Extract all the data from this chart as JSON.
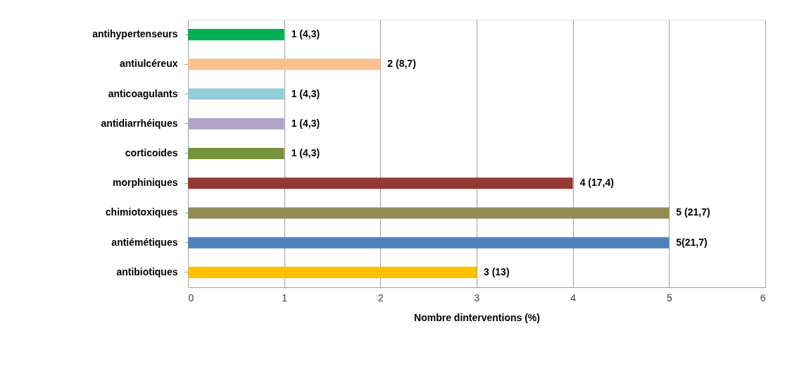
{
  "chart_data": {
    "type": "bar",
    "orientation": "horizontal",
    "xlabel": "Nombre dinterventions (%)",
    "categories": [
      "antihypertenseurs",
      "antiulcéreux",
      "anticoagulants",
      "antidiarrhéiques",
      "corticoides",
      "morphiniques",
      "chimiotoxiques",
      "antiémétiques",
      "antibiotiques"
    ],
    "values": [
      1,
      2,
      1,
      1,
      1,
      4,
      5,
      5,
      3
    ],
    "colors": [
      "#00b050",
      "#fac090",
      "#92cddc",
      "#b3a2c7",
      "#77933c",
      "#953735",
      "#948a54",
      "#4f81bd",
      "#ffc000"
    ],
    "value_labels": [
      "1 (4,3)",
      "2 (8,7)",
      "1 (4,3)",
      "1 (4,3)",
      "1 (4,3)",
      "4 (17,4)",
      "5 (21,7)",
      "5(21,7)",
      "3 (13)"
    ],
    "xlim": [
      0,
      6
    ],
    "xticks": [
      0,
      1,
      2,
      3,
      4,
      5,
      6
    ],
    "grid": "x"
  }
}
